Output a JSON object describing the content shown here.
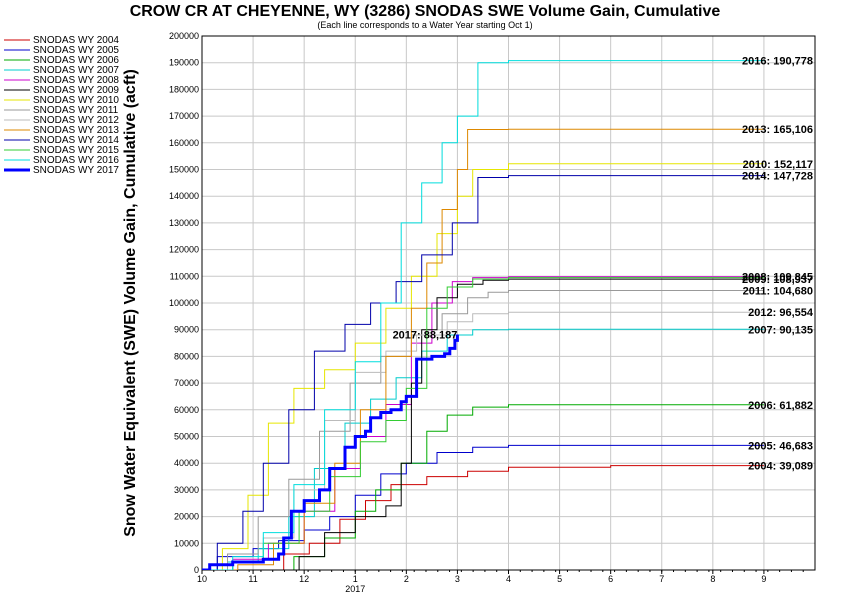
{
  "chart_data": {
    "type": "line",
    "title": "CROW CR AT CHEYENNE, WY (3286) SNODAS SWE Volume Gain, Cumulative",
    "subtitle": "(Each line corresponds to a Water Year starting Oct 1)",
    "ylabel": "Snow Water Equivalent (SWE) Volume Gain, Cumulative (acft)",
    "xlabel": "",
    "x_tick_labels": [
      "10",
      "11",
      "12",
      "1",
      "2",
      "3",
      "4",
      "5",
      "6",
      "7",
      "8",
      "9"
    ],
    "x_year_label": "2017",
    "ylim": [
      0,
      200000
    ],
    "y_ticks": [
      0,
      10000,
      20000,
      30000,
      40000,
      50000,
      60000,
      70000,
      80000,
      90000,
      100000,
      110000,
      120000,
      130000,
      140000,
      150000,
      160000,
      170000,
      180000,
      190000,
      200000
    ],
    "grid": true,
    "legend_position": "left",
    "series": [
      {
        "name": "SNODAS WY 2004",
        "color": "#cc0000",
        "end_label": "2004: 39,089",
        "final": 39089,
        "points": [
          [
            0.0,
            0
          ],
          [
            1.0,
            0
          ],
          [
            1.6,
            6000
          ],
          [
            2.1,
            10000
          ],
          [
            2.7,
            19000
          ],
          [
            3.2,
            26000
          ],
          [
            3.7,
            32000
          ],
          [
            4.4,
            35000
          ],
          [
            5.2,
            37000
          ],
          [
            6.0,
            38500
          ],
          [
            8.0,
            39089
          ],
          [
            11.0,
            39089
          ]
        ]
      },
      {
        "name": "SNODAS WY 2005",
        "color": "#0000cc",
        "end_label": "2005: 46,683",
        "final": 46683,
        "points": [
          [
            0.0,
            0
          ],
          [
            0.3,
            5000
          ],
          [
            1.0,
            8000
          ],
          [
            1.5,
            11000
          ],
          [
            2.0,
            15000
          ],
          [
            2.5,
            20000
          ],
          [
            3.0,
            28000
          ],
          [
            3.5,
            36000
          ],
          [
            4.0,
            40000
          ],
          [
            4.6,
            44000
          ],
          [
            5.3,
            46000
          ],
          [
            6.0,
            46683
          ],
          [
            11.0,
            46683
          ]
        ]
      },
      {
        "name": "SNODAS WY 2006",
        "color": "#00aa00",
        "end_label": "2006: 61,882",
        "final": 61882,
        "points": [
          [
            0.0,
            0
          ],
          [
            1.1,
            0
          ],
          [
            1.8,
            5000
          ],
          [
            2.4,
            12000
          ],
          [
            3.0,
            22000
          ],
          [
            3.4,
            30000
          ],
          [
            3.9,
            40000
          ],
          [
            4.4,
            52000
          ],
          [
            4.8,
            58000
          ],
          [
            5.3,
            61000
          ],
          [
            6.0,
            61882
          ],
          [
            11.0,
            61882
          ]
        ]
      },
      {
        "name": "SNODAS WY 2007",
        "color": "#00cccc",
        "end_label": "2007: 90,135",
        "final": 90135,
        "points": [
          [
            0.0,
            0
          ],
          [
            0.5,
            3000
          ],
          [
            1.1,
            8000
          ],
          [
            1.7,
            20000
          ],
          [
            2.2,
            38000
          ],
          [
            2.8,
            55000
          ],
          [
            3.3,
            64000
          ],
          [
            3.8,
            72000
          ],
          [
            4.3,
            82000
          ],
          [
            4.8,
            88000
          ],
          [
            5.3,
            90000
          ],
          [
            6.0,
            90135
          ],
          [
            11.0,
            90135
          ]
        ]
      },
      {
        "name": "SNODAS WY 2008",
        "color": "#cc00cc",
        "end_label": "2008: 109,845",
        "final": 109845,
        "points": [
          [
            0.0,
            0
          ],
          [
            0.6,
            4000
          ],
          [
            1.3,
            10000
          ],
          [
            2.0,
            22000
          ],
          [
            2.6,
            38000
          ],
          [
            3.1,
            50000
          ],
          [
            3.6,
            62000
          ],
          [
            4.1,
            85000
          ],
          [
            4.5,
            100000
          ],
          [
            4.9,
            108000
          ],
          [
            5.3,
            109500
          ],
          [
            6.0,
            109845
          ],
          [
            11.0,
            109845
          ]
        ]
      },
      {
        "name": "SNODAS WY 2009",
        "color": "#000000",
        "end_label": "2009: 108,937",
        "final": 108937,
        "points": [
          [
            0.0,
            0
          ],
          [
            1.2,
            0
          ],
          [
            1.9,
            5000
          ],
          [
            2.4,
            14000
          ],
          [
            3.0,
            20000
          ],
          [
            3.6,
            24000
          ],
          [
            3.9,
            40000
          ],
          [
            4.1,
            70000
          ],
          [
            4.3,
            90000
          ],
          [
            4.6,
            102000
          ],
          [
            5.0,
            107000
          ],
          [
            5.5,
            108500
          ],
          [
            6.0,
            108937
          ],
          [
            11.0,
            108937
          ]
        ]
      },
      {
        "name": "SNODAS WY 2010",
        "color": "#e6e600",
        "end_label": "2010: 152,117",
        "final": 152117,
        "points": [
          [
            0.0,
            0
          ],
          [
            0.4,
            8000
          ],
          [
            0.9,
            28000
          ],
          [
            1.3,
            55000
          ],
          [
            1.8,
            68000
          ],
          [
            2.4,
            75000
          ],
          [
            3.0,
            85000
          ],
          [
            3.6,
            98000
          ],
          [
            4.1,
            110000
          ],
          [
            4.6,
            126000
          ],
          [
            5.0,
            140000
          ],
          [
            5.3,
            150000
          ],
          [
            6.0,
            152117
          ],
          [
            11.0,
            152117
          ]
        ]
      },
      {
        "name": "SNODAS WY 2011",
        "color": "#999999",
        "end_label": "2011: 104,680",
        "final": 104680,
        "points": [
          [
            0.0,
            0
          ],
          [
            0.5,
            6000
          ],
          [
            1.1,
            20000
          ],
          [
            1.7,
            34000
          ],
          [
            2.3,
            52000
          ],
          [
            2.9,
            70000
          ],
          [
            3.5,
            80000
          ],
          [
            4.1,
            88000
          ],
          [
            4.7,
            96000
          ],
          [
            5.2,
            102000
          ],
          [
            5.6,
            104000
          ],
          [
            6.0,
            104680
          ],
          [
            11.0,
            104680
          ]
        ]
      },
      {
        "name": "SNODAS WY 2012",
        "color": "#bbbbbb",
        "end_label": "2012: 96,554",
        "final": 96554,
        "points": [
          [
            0.0,
            0
          ],
          [
            0.6,
            3000
          ],
          [
            1.2,
            12000
          ],
          [
            1.8,
            30000
          ],
          [
            2.4,
            56000
          ],
          [
            3.0,
            74000
          ],
          [
            3.6,
            82000
          ],
          [
            4.2,
            88000
          ],
          [
            4.8,
            93000
          ],
          [
            5.3,
            96000
          ],
          [
            6.0,
            96554
          ],
          [
            11.0,
            96554
          ]
        ]
      },
      {
        "name": "SNODAS WY 2013",
        "color": "#dd8800",
        "end_label": "2013: 165,106",
        "final": 165106,
        "points": [
          [
            0.0,
            0
          ],
          [
            0.7,
            2000
          ],
          [
            1.4,
            10000
          ],
          [
            2.0,
            25000
          ],
          [
            2.6,
            40000
          ],
          [
            3.1,
            60000
          ],
          [
            3.6,
            80000
          ],
          [
            4.1,
            98000
          ],
          [
            4.4,
            115000
          ],
          [
            4.7,
            135000
          ],
          [
            5.0,
            150000
          ],
          [
            5.2,
            165000
          ],
          [
            6.0,
            165106
          ],
          [
            11.0,
            165106
          ]
        ]
      },
      {
        "name": "SNODAS WY 2014",
        "color": "#0000aa",
        "end_label": "2014: 147,728",
        "final": 147728,
        "points": [
          [
            0.0,
            0
          ],
          [
            0.3,
            10000
          ],
          [
            0.8,
            22000
          ],
          [
            1.2,
            40000
          ],
          [
            1.7,
            60000
          ],
          [
            2.2,
            82000
          ],
          [
            2.8,
            92000
          ],
          [
            3.3,
            100000
          ],
          [
            3.8,
            108000
          ],
          [
            4.3,
            118000
          ],
          [
            4.9,
            130000
          ],
          [
            5.4,
            147000
          ],
          [
            6.0,
            147728
          ],
          [
            11.0,
            147728
          ]
        ]
      },
      {
        "name": "SNODAS WY 2015",
        "color": "#33cc33",
        "end_label": "",
        "final": 109500,
        "points": [
          [
            0.0,
            0
          ],
          [
            0.6,
            3000
          ],
          [
            1.2,
            10000
          ],
          [
            1.9,
            22000
          ],
          [
            2.5,
            35000
          ],
          [
            3.1,
            48000
          ],
          [
            3.6,
            56000
          ],
          [
            4.0,
            68000
          ],
          [
            4.4,
            98000
          ],
          [
            4.8,
            106000
          ],
          [
            5.3,
            109000
          ],
          [
            6.0,
            109500
          ],
          [
            11.0,
            109500
          ]
        ]
      },
      {
        "name": "SNODAS WY 2016",
        "color": "#00dddd",
        "end_label": "2016: 190,778",
        "final": 190778,
        "points": [
          [
            0.0,
            0
          ],
          [
            0.6,
            5000
          ],
          [
            1.2,
            14000
          ],
          [
            1.8,
            32000
          ],
          [
            2.4,
            60000
          ],
          [
            3.0,
            78000
          ],
          [
            3.5,
            100000
          ],
          [
            3.9,
            130000
          ],
          [
            4.3,
            145000
          ],
          [
            4.7,
            160000
          ],
          [
            5.0,
            170000
          ],
          [
            5.4,
            190000
          ],
          [
            6.0,
            190778
          ],
          [
            11.0,
            190778
          ]
        ]
      },
      {
        "name": "SNODAS WY 2017",
        "color": "#0000ff",
        "end_label": "2017: 88,187",
        "final": 88187,
        "points": [
          [
            0.0,
            0
          ],
          [
            0.15,
            2000
          ],
          [
            0.6,
            3000
          ],
          [
            1.2,
            4000
          ],
          [
            1.5,
            6000
          ],
          [
            1.6,
            12000
          ],
          [
            1.75,
            22000
          ],
          [
            2.0,
            26000
          ],
          [
            2.3,
            30000
          ],
          [
            2.5,
            38000
          ],
          [
            2.8,
            46000
          ],
          [
            3.0,
            50000
          ],
          [
            3.2,
            52000
          ],
          [
            3.3,
            57000
          ],
          [
            3.5,
            59000
          ],
          [
            3.7,
            60000
          ],
          [
            3.9,
            63000
          ],
          [
            4.0,
            65000
          ],
          [
            4.2,
            79000
          ],
          [
            4.5,
            80000
          ],
          [
            4.75,
            81000
          ],
          [
            4.85,
            83000
          ],
          [
            4.95,
            86000
          ],
          [
            5.0,
            88187
          ]
        ]
      }
    ]
  }
}
